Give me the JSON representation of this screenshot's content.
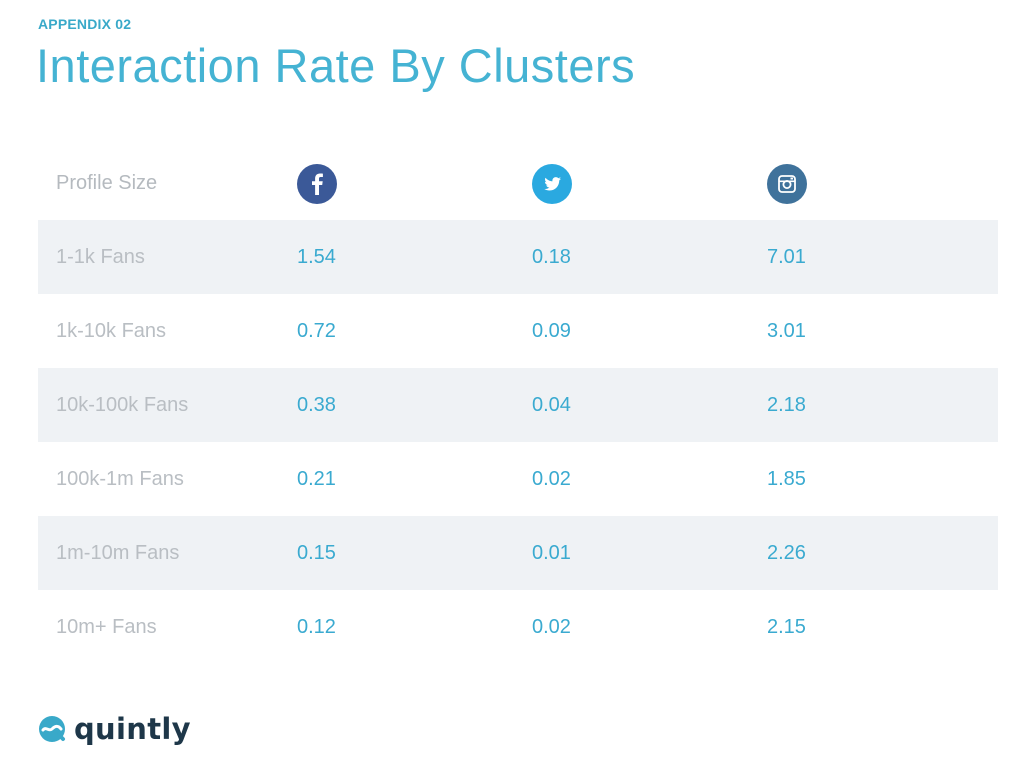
{
  "appendix": "APPENDIX 02",
  "title": "Interaction Rate By Clusters",
  "table": {
    "header_label": "Profile Size",
    "columns": [
      {
        "network": "facebook",
        "icon": "facebook-icon",
        "color": "#3b5998"
      },
      {
        "network": "twitter",
        "icon": "twitter-icon",
        "color": "#2aa9e0"
      },
      {
        "network": "instagram",
        "icon": "instagram-icon",
        "color": "#3f729b"
      }
    ],
    "rows": [
      {
        "label": "1-1k Fans",
        "values": [
          "1.54",
          "0.18",
          "7.01"
        ]
      },
      {
        "label": "1k-10k Fans",
        "values": [
          "0.72",
          "0.09",
          "3.01"
        ]
      },
      {
        "label": "10k-100k Fans",
        "values": [
          "0.38",
          "0.04",
          "2.18"
        ]
      },
      {
        "label": "100k-1m Fans",
        "values": [
          "0.21",
          "0.02",
          "1.85"
        ]
      },
      {
        "label": "1m-10m Fans",
        "values": [
          "0.15",
          "0.01",
          "2.26"
        ]
      },
      {
        "label": "10m+ Fans",
        "values": [
          "0.12",
          "0.02",
          "2.15"
        ]
      }
    ]
  },
  "logo": {
    "text": "quintly",
    "color": "#1e3749",
    "accent": "#39a9c9"
  }
}
